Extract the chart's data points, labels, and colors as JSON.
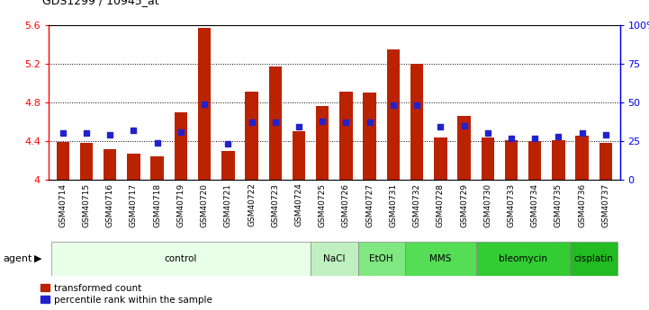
{
  "title": "GDS1299 / 10945_at",
  "samples": [
    "GSM40714",
    "GSM40715",
    "GSM40716",
    "GSM40717",
    "GSM40718",
    "GSM40719",
    "GSM40720",
    "GSM40721",
    "GSM40722",
    "GSM40723",
    "GSM40724",
    "GSM40725",
    "GSM40726",
    "GSM40727",
    "GSM40731",
    "GSM40732",
    "GSM40728",
    "GSM40729",
    "GSM40730",
    "GSM40733",
    "GSM40734",
    "GSM40735",
    "GSM40736",
    "GSM40737"
  ],
  "bar_values": [
    4.39,
    4.38,
    4.32,
    4.27,
    4.24,
    4.7,
    5.57,
    4.3,
    4.91,
    5.17,
    4.5,
    4.76,
    4.91,
    4.9,
    5.35,
    5.2,
    4.44,
    4.66,
    4.44,
    4.41,
    4.4,
    4.41,
    4.46,
    4.38
  ],
  "percentile_values": [
    30,
    30,
    29,
    32,
    24,
    31,
    49,
    23,
    37,
    37,
    34,
    38,
    37,
    37,
    48,
    48,
    34,
    35,
    30,
    27,
    27,
    28,
    30,
    29
  ],
  "bar_color": "#bb2200",
  "percentile_color": "#2222cc",
  "ylim_left": [
    4.0,
    5.6
  ],
  "ylim_right": [
    0,
    100
  ],
  "yticks_left": [
    4.0,
    4.4,
    4.8,
    5.2,
    5.6
  ],
  "yticks_right": [
    0,
    25,
    50,
    75,
    100
  ],
  "ytick_labels_left": [
    "4",
    "4.4",
    "4.8",
    "5.2",
    "5.6"
  ],
  "ytick_labels_right": [
    "0",
    "25",
    "50",
    "75",
    "100%"
  ],
  "agent_groups": [
    {
      "label": "control",
      "start": 0,
      "end": 11,
      "color": "#e8ffe8"
    },
    {
      "label": "NaCl",
      "start": 11,
      "end": 13,
      "color": "#c0f0c0"
    },
    {
      "label": "EtOH",
      "start": 13,
      "end": 15,
      "color": "#80e880"
    },
    {
      "label": "MMS",
      "start": 15,
      "end": 18,
      "color": "#55dd55"
    },
    {
      "label": "bleomycin",
      "start": 18,
      "end": 22,
      "color": "#33cc33"
    },
    {
      "label": "cisplatin",
      "start": 22,
      "end": 24,
      "color": "#22bb22"
    }
  ],
  "agent_label": "agent",
  "legend_bar_label": "transformed count",
  "legend_pct_label": "percentile rank within the sample",
  "plot_bg": "white",
  "fig_bg": "white"
}
